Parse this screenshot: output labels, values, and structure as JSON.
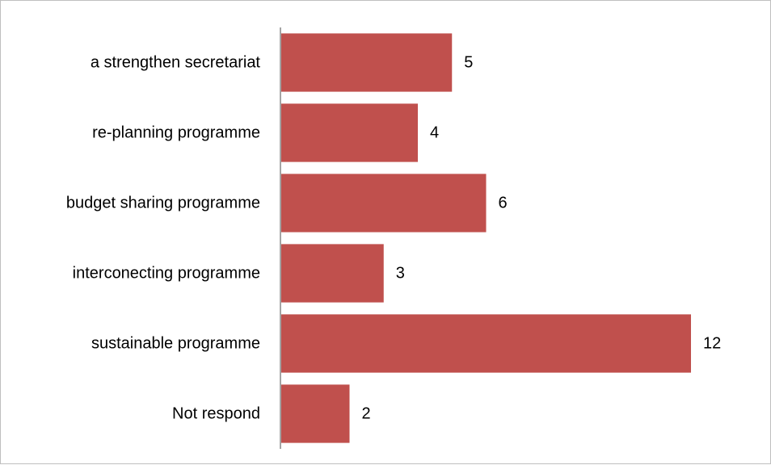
{
  "chart_data": {
    "type": "bar",
    "orientation": "horizontal",
    "title": "",
    "xlabel": "",
    "ylabel": "",
    "categories": [
      "a strengthen secretariat",
      "re-planning programme",
      "budget sharing programme",
      "interconecting programme",
      "sustainable programme",
      "Not respond"
    ],
    "values": [
      5,
      4,
      6,
      3,
      12,
      2
    ],
    "xlim": [
      0,
      12
    ],
    "grid": false,
    "legend": "none",
    "data_labels": true,
    "bar_color": "#c0504d",
    "axis_color": "#868686"
  }
}
